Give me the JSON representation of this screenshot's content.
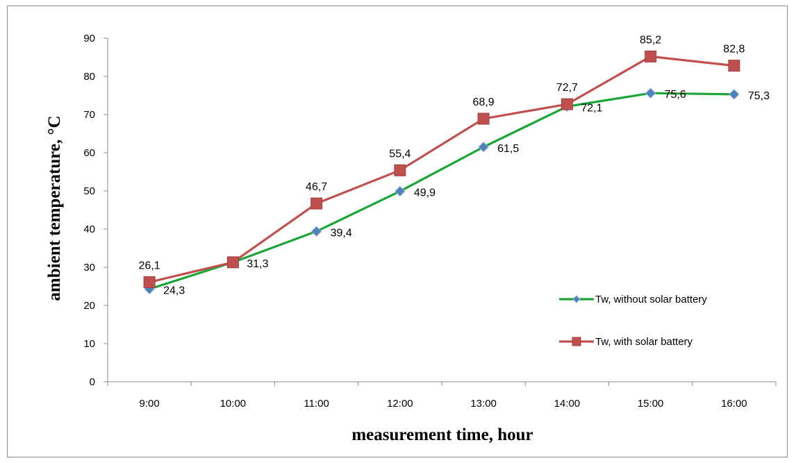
{
  "chart_data": {
    "type": "line",
    "title": "",
    "xlabel": "measurement time, hour",
    "ylabel": "ambient temperature,  °C",
    "categories": [
      "9:00",
      "10:00",
      "11:00",
      "12:00",
      "13:00",
      "14:00",
      "15:00",
      "16:00"
    ],
    "ylim": [
      0,
      90
    ],
    "yticks": [
      "0",
      "10",
      "20",
      "30",
      "40",
      "50",
      "60",
      "70",
      "80",
      "90"
    ],
    "grid": false,
    "legend_position": "right",
    "series": [
      {
        "name": "Tw, without solar battery",
        "color": "#1aa637",
        "marker": "diamond",
        "marker_color": "#4f81bd",
        "values": [
          24.3,
          31.3,
          39.4,
          49.9,
          61.5,
          72.1,
          75.6,
          75.3
        ],
        "labels": [
          "24,3",
          "31,3",
          "39,4",
          "49,9",
          "61,5",
          "72,1",
          "75,6",
          "75,3"
        ]
      },
      {
        "name": "Tw, with solar battery",
        "color": "#c0504d",
        "marker": "square",
        "marker_color": "#c0504d",
        "values": [
          26.1,
          31.3,
          46.7,
          55.4,
          68.9,
          72.7,
          85.2,
          82.8
        ],
        "labels": [
          "26,1",
          "",
          "46,7",
          "55,4",
          "68,9",
          "72,7",
          "85,2",
          "82,8"
        ]
      }
    ]
  }
}
